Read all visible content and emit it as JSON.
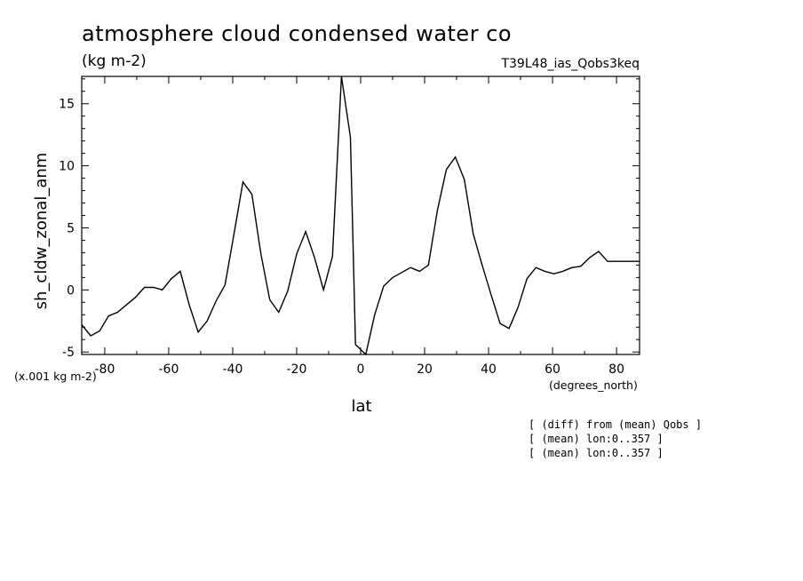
{
  "chart_data": {
    "type": "line",
    "title": "atmosphere cloud condensed water co",
    "subtitle": "(kg m-2)",
    "run_label": "T39L48_ias_Qobs3keq",
    "xlabel": "lat",
    "ylabel": "sh_cldw_zonal_anm",
    "x_units": "(degrees_north)",
    "y_scale_note": "(x.001 kg m-2)",
    "xlim": [
      -87.2,
      87.2
    ],
    "ylim": [
      -5.2,
      17.2
    ],
    "x_ticks": [
      -80,
      -60,
      -40,
      -20,
      0,
      20,
      40,
      60,
      80
    ],
    "y_ticks": [
      -5,
      0,
      5,
      10,
      15
    ],
    "x_tick_labels": [
      "-80",
      "-60",
      "-40",
      "-20",
      "0",
      "20",
      "40",
      "60",
      "80"
    ],
    "y_tick_labels": [
      "-5",
      "0",
      "5",
      "10",
      "15"
    ],
    "grid": false,
    "series": [
      {
        "x": [
          -87.2,
          -84.4,
          -81.6,
          -78.8,
          -76.0,
          -73.2,
          -70.4,
          -67.6,
          -64.8,
          -62.0,
          -59.2,
          -56.4,
          -53.6,
          -50.8,
          -48.0,
          -45.2,
          -42.4,
          -39.6,
          -36.8,
          -34.0,
          -31.2,
          -28.4,
          -25.6,
          -22.8,
          -20.0,
          -17.2,
          -14.4,
          -11.6,
          -8.8,
          -6.0,
          -3.2,
          -1.6,
          1.6,
          4.4,
          7.2,
          10.0,
          12.8,
          15.6,
          18.4,
          21.2,
          24.0,
          26.8,
          29.6,
          32.4,
          35.2,
          38.0,
          40.8,
          43.6,
          46.4,
          49.2,
          52.0,
          54.8,
          57.6,
          60.4,
          63.2,
          66.0,
          68.8,
          71.6,
          74.4,
          77.2,
          80.0,
          82.8,
          85.6,
          87.2
        ],
        "values": [
          -2.8,
          -3.7,
          -3.3,
          -2.1,
          -1.8,
          -1.2,
          -0.6,
          0.2,
          0.2,
          0.0,
          0.9,
          1.5,
          -1.2,
          -3.4,
          -2.5,
          -0.9,
          0.4,
          4.5,
          8.7,
          7.7,
          2.9,
          -0.8,
          -1.8,
          -0.1,
          2.9,
          4.7,
          2.6,
          0.0,
          2.7,
          17.2,
          12.3,
          -4.4,
          -5.2,
          -2.0,
          0.3,
          1.0,
          1.4,
          1.8,
          1.5,
          2.0,
          6.4,
          9.7,
          10.7,
          8.9,
          4.5,
          2.0,
          -0.4,
          -2.7,
          -3.1,
          -1.4,
          0.9,
          1.8,
          1.5,
          1.3,
          1.5,
          1.8,
          1.9,
          2.6,
          3.1,
          2.3,
          2.3,
          2.3,
          2.3,
          2.3
        ]
      }
    ]
  },
  "notes": [
    "[ (diff) from (mean) Qobs ]",
    "[ (mean) lon:0..357 ]",
    "[ (mean) lon:0..357 ]"
  ]
}
